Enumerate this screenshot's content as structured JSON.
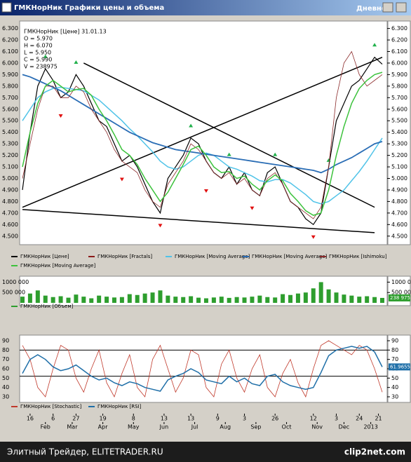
{
  "window": {
    "title": "ГМКНорНик Графики цены и объема",
    "mode": "Дневной"
  },
  "footer": {
    "left": "Элитный Трейдер, ELITETRADER.RU",
    "right": "clip2net.com"
  },
  "chart_data": [
    {
      "type": "line",
      "annotations": [
        "ГМКНорНик [Цене] 31.01.13",
        "O = 5.970",
        "H = 6.070",
        "L = 5.950",
        "C = 5.990",
        "V = 238975"
      ],
      "xlim": [
        0,
        47
      ],
      "ylim": [
        4450,
        6340
      ],
      "yticks": [
        {
          "value": 4500,
          "label": "4.500"
        },
        {
          "value": 4600,
          "label": "4.600"
        },
        {
          "value": 4700,
          "label": "4.700"
        },
        {
          "value": 4800,
          "label": "4.800"
        },
        {
          "value": 4900,
          "label": "4.900"
        },
        {
          "value": 5000,
          "label": "5.000"
        },
        {
          "value": 5100,
          "label": "5.100"
        },
        {
          "value": 5200,
          "label": "5.200"
        },
        {
          "value": 5300,
          "label": "5.300"
        },
        {
          "value": 5400,
          "label": "5.400"
        },
        {
          "value": 5500,
          "label": "5.500"
        },
        {
          "value": 5600,
          "label": "5.600"
        },
        {
          "value": 5700,
          "label": "5.700"
        },
        {
          "value": 5800,
          "label": "5.800"
        },
        {
          "value": 5900,
          "label": "5.900"
        },
        {
          "value": 6000,
          "label": "6.000"
        },
        {
          "value": 6100,
          "label": "6.100"
        },
        {
          "value": 6200,
          "label": "6.200"
        },
        {
          "value": 6300,
          "label": "6.300"
        }
      ],
      "x": [
        0,
        1,
        2,
        3,
        4,
        5,
        6,
        7,
        8,
        9,
        10,
        11,
        12,
        13,
        14,
        15,
        16,
        17,
        18,
        19,
        20,
        21,
        22,
        23,
        24,
        25,
        26,
        27,
        28,
        29,
        30,
        31,
        32,
        33,
        34,
        35,
        36,
        37,
        38,
        39,
        40,
        41,
        42,
        43,
        44,
        45,
        46,
        47
      ],
      "series": [
        {
          "name": "ГМКНорНик [Цене]",
          "color": "#000000",
          "width": 1.2,
          "values": [
            4900,
            5400,
            5800,
            5950,
            5850,
            5700,
            5750,
            5900,
            5800,
            5650,
            5500,
            5450,
            5300,
            5150,
            5200,
            5100,
            4950,
            4800,
            4700,
            5000,
            5100,
            5200,
            5350,
            5300,
            5150,
            5050,
            5000,
            5100,
            4950,
            5050,
            4900,
            4850,
            5050,
            5100,
            4950,
            4800,
            4750,
            4650,
            4600,
            4700,
            5100,
            5500,
            5650,
            5800,
            5850,
            5950,
            6050,
            5990
          ]
        },
        {
          "name": "ГМКНорНик [Fractals]",
          "color": "#8b1a1a",
          "up_color": "#22b14c",
          "down_color": "#e01010",
          "up_x": [
            3,
            7,
            22,
            27,
            33,
            40,
            46
          ],
          "up_values": [
            6050,
            6000,
            5450,
            5200,
            5200,
            5150,
            6150
          ],
          "down_x": [
            5,
            13,
            18,
            24,
            30,
            38
          ],
          "down_values": [
            5550,
            5000,
            4600,
            4900,
            4750,
            4500
          ]
        },
        {
          "name": "ГМКНорНик [Moving Average]",
          "color": "#4fc3e8",
          "width": 1.5,
          "values": [
            5500,
            5600,
            5700,
            5750,
            5780,
            5790,
            5780,
            5770,
            5760,
            5720,
            5680,
            5620,
            5560,
            5500,
            5430,
            5370,
            5300,
            5230,
            5150,
            5100,
            5080,
            5100,
            5150,
            5200,
            5220,
            5200,
            5150,
            5100,
            5080,
            5050,
            5020,
            4980,
            4970,
            4990,
            4990,
            4960,
            4910,
            4860,
            4800,
            4780,
            4800,
            4850,
            4900,
            4980,
            5060,
            5150,
            5250,
            5350
          ]
        },
        {
          "name": "ГМКНорНик [Moving Average]",
          "color": "#2a6db5",
          "width": 1.8,
          "values": [
            5900,
            5880,
            5850,
            5820,
            5790,
            5760,
            5720,
            5680,
            5640,
            5600,
            5560,
            5520,
            5480,
            5440,
            5400,
            5370,
            5340,
            5310,
            5290,
            5270,
            5250,
            5240,
            5230,
            5220,
            5210,
            5200,
            5190,
            5180,
            5170,
            5160,
            5150,
            5140,
            5130,
            5120,
            5110,
            5100,
            5090,
            5080,
            5070,
            5050,
            5080,
            5120,
            5150,
            5180,
            5220,
            5260,
            5300,
            5320
          ]
        },
        {
          "name": "ГМКНорНик [Ishimoku]",
          "color": "#8b2a2a",
          "width": 0.8,
          "values": [
            5000,
            5300,
            5600,
            5800,
            5800,
            5700,
            5700,
            5800,
            5750,
            5600,
            5500,
            5400,
            5250,
            5150,
            5100,
            5050,
            4900,
            4800,
            4750,
            4950,
            5050,
            5150,
            5300,
            5250,
            5150,
            5050,
            5000,
            5050,
            4950,
            5000,
            4900,
            4850,
            5000,
            5050,
            4950,
            4800,
            4750,
            4700,
            4650,
            4750,
            5100,
            5700,
            6000,
            6100,
            5900,
            5800,
            5850,
            5900
          ]
        },
        {
          "name": "ГМКНорНик [Moving Average]",
          "color": "#3cc23c",
          "width": 1.5,
          "values": [
            5100,
            5400,
            5650,
            5800,
            5850,
            5800,
            5750,
            5770,
            5780,
            5720,
            5600,
            5500,
            5380,
            5250,
            5200,
            5120,
            5000,
            4900,
            4800,
            4880,
            5000,
            5120,
            5250,
            5280,
            5200,
            5100,
            5050,
            5060,
            5000,
            5020,
            4950,
            4900,
            4980,
            5030,
            4980,
            4870,
            4800,
            4720,
            4680,
            4700,
            4900,
            5200,
            5450,
            5650,
            5780,
            5850,
            5900,
            5920
          ]
        }
      ],
      "trendlines": [
        {
          "x": [
            0,
            47
          ],
          "y": [
            4750,
            6050
          ]
        },
        {
          "x": [
            0,
            46
          ],
          "y": [
            4730,
            4530
          ]
        },
        {
          "x": [
            8,
            46
          ],
          "y": [
            6000,
            4750
          ]
        }
      ]
    },
    {
      "type": "bar",
      "xlim": [
        0,
        47
      ],
      "ylim": [
        0,
        1150000
      ],
      "yticks": [
        {
          "value": 500000,
          "label": "500 000"
        },
        {
          "value": 1000000,
          "label": "1000 000"
        }
      ],
      "x": [
        0,
        1,
        2,
        3,
        4,
        5,
        6,
        7,
        8,
        9,
        10,
        11,
        12,
        13,
        14,
        15,
        16,
        17,
        18,
        19,
        20,
        21,
        22,
        23,
        24,
        25,
        26,
        27,
        28,
        29,
        30,
        31,
        32,
        33,
        34,
        35,
        36,
        37,
        38,
        39,
        40,
        41,
        42,
        43,
        44,
        45,
        46,
        47
      ],
      "series": [
        {
          "name": "ГМКНорНик [Объем]",
          "color": "#2e9e2e",
          "values": [
            300000,
            450000,
            600000,
            350000,
            280000,
            320000,
            250000,
            400000,
            300000,
            220000,
            350000,
            300000,
            260000,
            280000,
            420000,
            380000,
            450000,
            500000,
            600000,
            350000,
            300000,
            280000,
            320000,
            250000,
            220000,
            260000,
            300000,
            240000,
            280000,
            260000,
            300000,
            350000,
            280000,
            260000,
            420000,
            380000,
            450000,
            500000,
            700000,
            1000000,
            650000,
            500000,
            400000,
            350000,
            300000,
            320000,
            280000,
            238975
          ],
          "last_value_label": "238 975"
        }
      ]
    },
    {
      "type": "line",
      "xlim": [
        0,
        47
      ],
      "ylim": [
        27,
        93
      ],
      "yticks": [
        30,
        40,
        50,
        60,
        70,
        80,
        90
      ],
      "hlines": [
        80,
        52
      ],
      "x": [
        0,
        1,
        2,
        3,
        4,
        5,
        6,
        7,
        8,
        9,
        10,
        11,
        12,
        13,
        14,
        15,
        16,
        17,
        18,
        19,
        20,
        21,
        22,
        23,
        24,
        25,
        26,
        27,
        28,
        29,
        30,
        31,
        32,
        33,
        34,
        35,
        36,
        37,
        38,
        39,
        40,
        41,
        42,
        43,
        44,
        45,
        46,
        47
      ],
      "series": [
        {
          "name": "ГМКНорНик [Stochastic]",
          "color": "#c0392b",
          "width": 0.8,
          "values": [
            85,
            70,
            40,
            30,
            60,
            85,
            80,
            50,
            35,
            60,
            80,
            45,
            30,
            55,
            75,
            40,
            30,
            70,
            85,
            60,
            35,
            50,
            80,
            75,
            40,
            30,
            65,
            80,
            50,
            35,
            60,
            75,
            40,
            30,
            55,
            70,
            45,
            30,
            60,
            85,
            90,
            85,
            80,
            75,
            85,
            80,
            60,
            35
          ]
        },
        {
          "name": "ГМКНорНик [RSI]",
          "color": "#1f6fa8",
          "width": 1.5,
          "values": [
            55,
            70,
            75,
            70,
            62,
            58,
            60,
            64,
            58,
            52,
            48,
            50,
            45,
            42,
            46,
            44,
            40,
            38,
            36,
            48,
            52,
            55,
            60,
            56,
            48,
            46,
            44,
            52,
            46,
            50,
            44,
            42,
            52,
            54,
            46,
            42,
            40,
            38,
            40,
            56,
            74,
            80,
            82,
            84,
            82,
            84,
            78,
            61.9655
          ],
          "last_value_label": "61.9655"
        }
      ],
      "xticks": [
        {
          "value": 1,
          "label": "16"
        },
        {
          "value": 4,
          "label": "6"
        },
        {
          "value": 7,
          "label": "27"
        },
        {
          "value": 10.5,
          "label": "19"
        },
        {
          "value": 14.5,
          "label": "8"
        },
        {
          "value": 18.5,
          "label": "13"
        },
        {
          "value": 22,
          "label": "13"
        },
        {
          "value": 25.5,
          "label": "9"
        },
        {
          "value": 29,
          "label": "3"
        },
        {
          "value": 33,
          "label": "26"
        },
        {
          "value": 38,
          "label": "12"
        },
        {
          "value": 41,
          "label": "3"
        },
        {
          "value": 44,
          "label": "24"
        },
        {
          "value": 46.5,
          "label": "21"
        }
      ],
      "month_ticks": [
        {
          "value": 3,
          "label": "Feb"
        },
        {
          "value": 6.5,
          "label": "Mar"
        },
        {
          "value": 10.5,
          "label": "Apr"
        },
        {
          "value": 14.5,
          "label": "May"
        },
        {
          "value": 18.5,
          "label": "Jun"
        },
        {
          "value": 22.5,
          "label": "Jul"
        },
        {
          "value": 26.5,
          "label": "Aug"
        },
        {
          "value": 30.5,
          "label": "Sep"
        },
        {
          "value": 34.5,
          "label": "Oct"
        },
        {
          "value": 38.5,
          "label": "Nov"
        },
        {
          "value": 42,
          "label": "Dec"
        },
        {
          "value": 45.5,
          "label": "2013"
        }
      ]
    }
  ]
}
